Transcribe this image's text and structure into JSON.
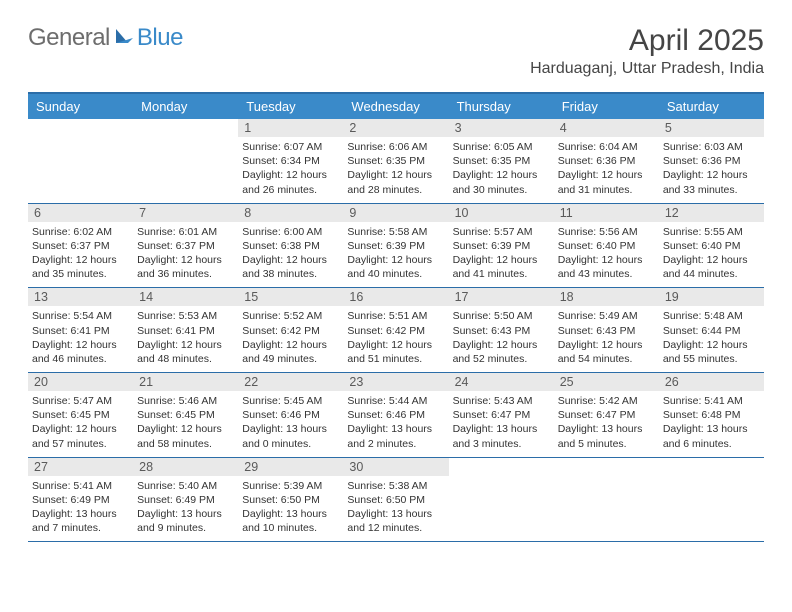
{
  "logo": {
    "word1": "General",
    "word2": "Blue",
    "color_gray": "#6d6d6d",
    "color_blue": "#3a8ac9"
  },
  "header": {
    "month_title": "April 2025",
    "location": "Harduaganj, Uttar Pradesh, India"
  },
  "colors": {
    "header_bg": "#3a8ac9",
    "header_border": "#2b6da8",
    "daynum_bg": "#e9e9e9",
    "text": "#333333",
    "title_text": "#454545"
  },
  "day_names": [
    "Sunday",
    "Monday",
    "Tuesday",
    "Wednesday",
    "Thursday",
    "Friday",
    "Saturday"
  ],
  "weeks": [
    [
      {
        "n": "",
        "sunrise": "",
        "sunset": "",
        "daylight": ""
      },
      {
        "n": "",
        "sunrise": "",
        "sunset": "",
        "daylight": ""
      },
      {
        "n": "1",
        "sunrise": "Sunrise: 6:07 AM",
        "sunset": "Sunset: 6:34 PM",
        "daylight": "Daylight: 12 hours and 26 minutes."
      },
      {
        "n": "2",
        "sunrise": "Sunrise: 6:06 AM",
        "sunset": "Sunset: 6:35 PM",
        "daylight": "Daylight: 12 hours and 28 minutes."
      },
      {
        "n": "3",
        "sunrise": "Sunrise: 6:05 AM",
        "sunset": "Sunset: 6:35 PM",
        "daylight": "Daylight: 12 hours and 30 minutes."
      },
      {
        "n": "4",
        "sunrise": "Sunrise: 6:04 AM",
        "sunset": "Sunset: 6:36 PM",
        "daylight": "Daylight: 12 hours and 31 minutes."
      },
      {
        "n": "5",
        "sunrise": "Sunrise: 6:03 AM",
        "sunset": "Sunset: 6:36 PM",
        "daylight": "Daylight: 12 hours and 33 minutes."
      }
    ],
    [
      {
        "n": "6",
        "sunrise": "Sunrise: 6:02 AM",
        "sunset": "Sunset: 6:37 PM",
        "daylight": "Daylight: 12 hours and 35 minutes."
      },
      {
        "n": "7",
        "sunrise": "Sunrise: 6:01 AM",
        "sunset": "Sunset: 6:37 PM",
        "daylight": "Daylight: 12 hours and 36 minutes."
      },
      {
        "n": "8",
        "sunrise": "Sunrise: 6:00 AM",
        "sunset": "Sunset: 6:38 PM",
        "daylight": "Daylight: 12 hours and 38 minutes."
      },
      {
        "n": "9",
        "sunrise": "Sunrise: 5:58 AM",
        "sunset": "Sunset: 6:39 PM",
        "daylight": "Daylight: 12 hours and 40 minutes."
      },
      {
        "n": "10",
        "sunrise": "Sunrise: 5:57 AM",
        "sunset": "Sunset: 6:39 PM",
        "daylight": "Daylight: 12 hours and 41 minutes."
      },
      {
        "n": "11",
        "sunrise": "Sunrise: 5:56 AM",
        "sunset": "Sunset: 6:40 PM",
        "daylight": "Daylight: 12 hours and 43 minutes."
      },
      {
        "n": "12",
        "sunrise": "Sunrise: 5:55 AM",
        "sunset": "Sunset: 6:40 PM",
        "daylight": "Daylight: 12 hours and 44 minutes."
      }
    ],
    [
      {
        "n": "13",
        "sunrise": "Sunrise: 5:54 AM",
        "sunset": "Sunset: 6:41 PM",
        "daylight": "Daylight: 12 hours and 46 minutes."
      },
      {
        "n": "14",
        "sunrise": "Sunrise: 5:53 AM",
        "sunset": "Sunset: 6:41 PM",
        "daylight": "Daylight: 12 hours and 48 minutes."
      },
      {
        "n": "15",
        "sunrise": "Sunrise: 5:52 AM",
        "sunset": "Sunset: 6:42 PM",
        "daylight": "Daylight: 12 hours and 49 minutes."
      },
      {
        "n": "16",
        "sunrise": "Sunrise: 5:51 AM",
        "sunset": "Sunset: 6:42 PM",
        "daylight": "Daylight: 12 hours and 51 minutes."
      },
      {
        "n": "17",
        "sunrise": "Sunrise: 5:50 AM",
        "sunset": "Sunset: 6:43 PM",
        "daylight": "Daylight: 12 hours and 52 minutes."
      },
      {
        "n": "18",
        "sunrise": "Sunrise: 5:49 AM",
        "sunset": "Sunset: 6:43 PM",
        "daylight": "Daylight: 12 hours and 54 minutes."
      },
      {
        "n": "19",
        "sunrise": "Sunrise: 5:48 AM",
        "sunset": "Sunset: 6:44 PM",
        "daylight": "Daylight: 12 hours and 55 minutes."
      }
    ],
    [
      {
        "n": "20",
        "sunrise": "Sunrise: 5:47 AM",
        "sunset": "Sunset: 6:45 PM",
        "daylight": "Daylight: 12 hours and 57 minutes."
      },
      {
        "n": "21",
        "sunrise": "Sunrise: 5:46 AM",
        "sunset": "Sunset: 6:45 PM",
        "daylight": "Daylight: 12 hours and 58 minutes."
      },
      {
        "n": "22",
        "sunrise": "Sunrise: 5:45 AM",
        "sunset": "Sunset: 6:46 PM",
        "daylight": "Daylight: 13 hours and 0 minutes."
      },
      {
        "n": "23",
        "sunrise": "Sunrise: 5:44 AM",
        "sunset": "Sunset: 6:46 PM",
        "daylight": "Daylight: 13 hours and 2 minutes."
      },
      {
        "n": "24",
        "sunrise": "Sunrise: 5:43 AM",
        "sunset": "Sunset: 6:47 PM",
        "daylight": "Daylight: 13 hours and 3 minutes."
      },
      {
        "n": "25",
        "sunrise": "Sunrise: 5:42 AM",
        "sunset": "Sunset: 6:47 PM",
        "daylight": "Daylight: 13 hours and 5 minutes."
      },
      {
        "n": "26",
        "sunrise": "Sunrise: 5:41 AM",
        "sunset": "Sunset: 6:48 PM",
        "daylight": "Daylight: 13 hours and 6 minutes."
      }
    ],
    [
      {
        "n": "27",
        "sunrise": "Sunrise: 5:41 AM",
        "sunset": "Sunset: 6:49 PM",
        "daylight": "Daylight: 13 hours and 7 minutes."
      },
      {
        "n": "28",
        "sunrise": "Sunrise: 5:40 AM",
        "sunset": "Sunset: 6:49 PM",
        "daylight": "Daylight: 13 hours and 9 minutes."
      },
      {
        "n": "29",
        "sunrise": "Sunrise: 5:39 AM",
        "sunset": "Sunset: 6:50 PM",
        "daylight": "Daylight: 13 hours and 10 minutes."
      },
      {
        "n": "30",
        "sunrise": "Sunrise: 5:38 AM",
        "sunset": "Sunset: 6:50 PM",
        "daylight": "Daylight: 13 hours and 12 minutes."
      },
      {
        "n": "",
        "sunrise": "",
        "sunset": "",
        "daylight": ""
      },
      {
        "n": "",
        "sunrise": "",
        "sunset": "",
        "daylight": ""
      },
      {
        "n": "",
        "sunrise": "",
        "sunset": "",
        "daylight": ""
      }
    ]
  ]
}
